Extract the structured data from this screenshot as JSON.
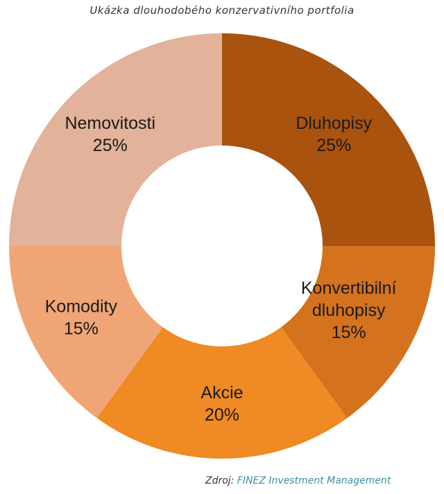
{
  "chart_data": {
    "type": "pie",
    "donut": true,
    "title": "Ukázka dlouhodobého konzervativního portfolia",
    "slices": [
      {
        "label": [
          "Dluhopisy"
        ],
        "value": 25,
        "value_label": "25%",
        "color": "#a9530f"
      },
      {
        "label": [
          "Konvertibilní",
          "dluhopisy"
        ],
        "value": 15,
        "value_label": "15%",
        "color": "#d4721d"
      },
      {
        "label": [
          "Akcie"
        ],
        "value": 20,
        "value_label": "20%",
        "color": "#ef8a24"
      },
      {
        "label": [
          "Komodity"
        ],
        "value": 15,
        "value_label": "15%",
        "color": "#f0a577"
      },
      {
        "label": [
          "Nemovitosti"
        ],
        "value": 25,
        "value_label": "25%",
        "color": "#e2b29a"
      }
    ],
    "start": "top",
    "direction": "clockwise"
  },
  "source": {
    "prefix": "Zdroj:",
    "org": "FINEZ Investment Management"
  }
}
